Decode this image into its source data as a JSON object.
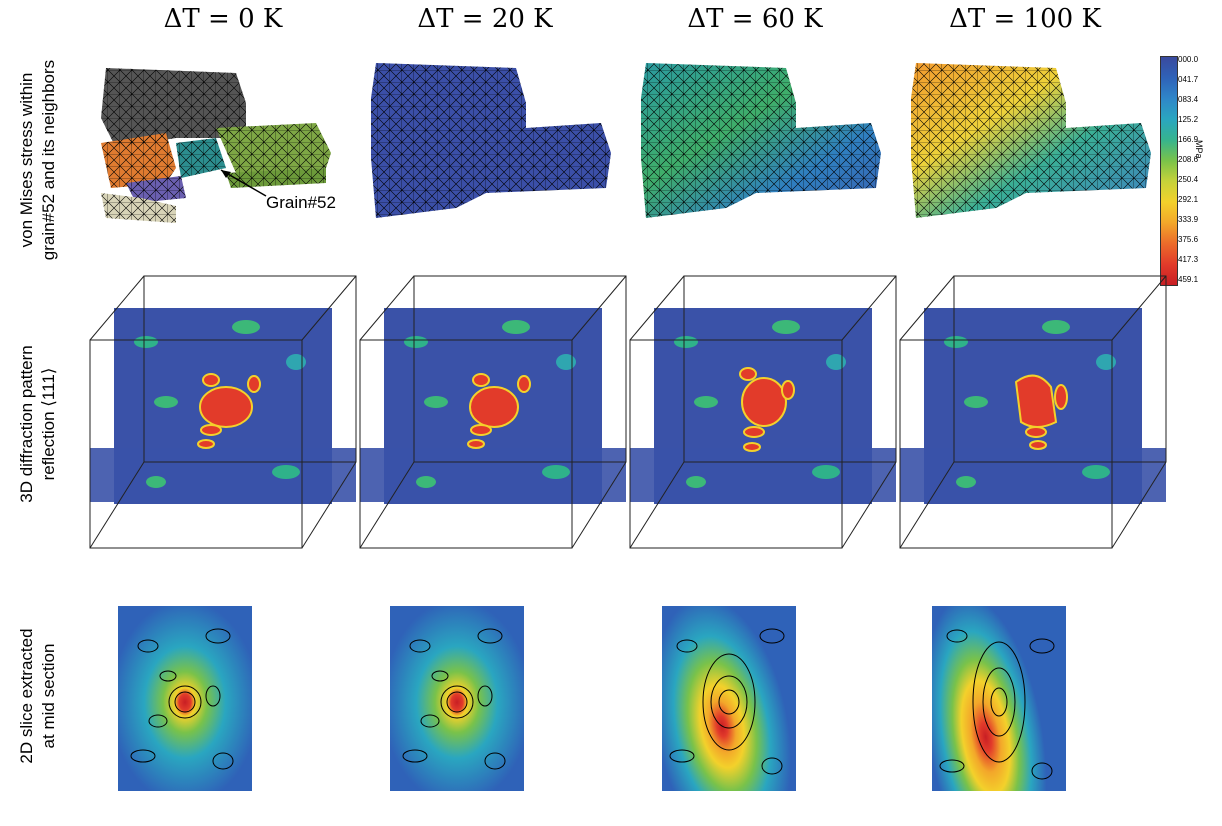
{
  "columns": [
    {
      "label": "ΔT = 0 K",
      "stress_color": "mixed"
    },
    {
      "label": "ΔT = 20 K",
      "stress_color": "#3b4fa8"
    },
    {
      "label": "ΔT = 60 K",
      "stress_color": "#2f8fb8"
    },
    {
      "label": "ΔT = 100 K",
      "stress_color": "#f0b53a"
    }
  ],
  "rows": [
    {
      "label_line1": "von Mises stress within",
      "label_line2": "grain#52 and its neighbors"
    },
    {
      "label_line1": "3D diffraction pattern",
      "label_line2": "reflection ⟨111⟩"
    },
    {
      "label_line1": "2D slice extracted",
      "label_line2": "at mid section"
    }
  ],
  "annotation": {
    "grain_label": "Grain#52"
  },
  "colorbar": {
    "unit": "MPa",
    "ticks": [
      "000.0",
      "041.7",
      "083.4",
      "125.2",
      "166.9",
      "208.6",
      "250.4",
      "292.1",
      "333.9",
      "375.6",
      "417.3",
      "459.1"
    ],
    "colors": [
      "#3a4a9e",
      "#2f62b8",
      "#2f86c8",
      "#2aa6c0",
      "#36b48e",
      "#79c24a",
      "#c6d23a",
      "#f3d12b",
      "#f3a72a",
      "#ec6b2a",
      "#e23b2a",
      "#c81e24"
    ]
  }
}
